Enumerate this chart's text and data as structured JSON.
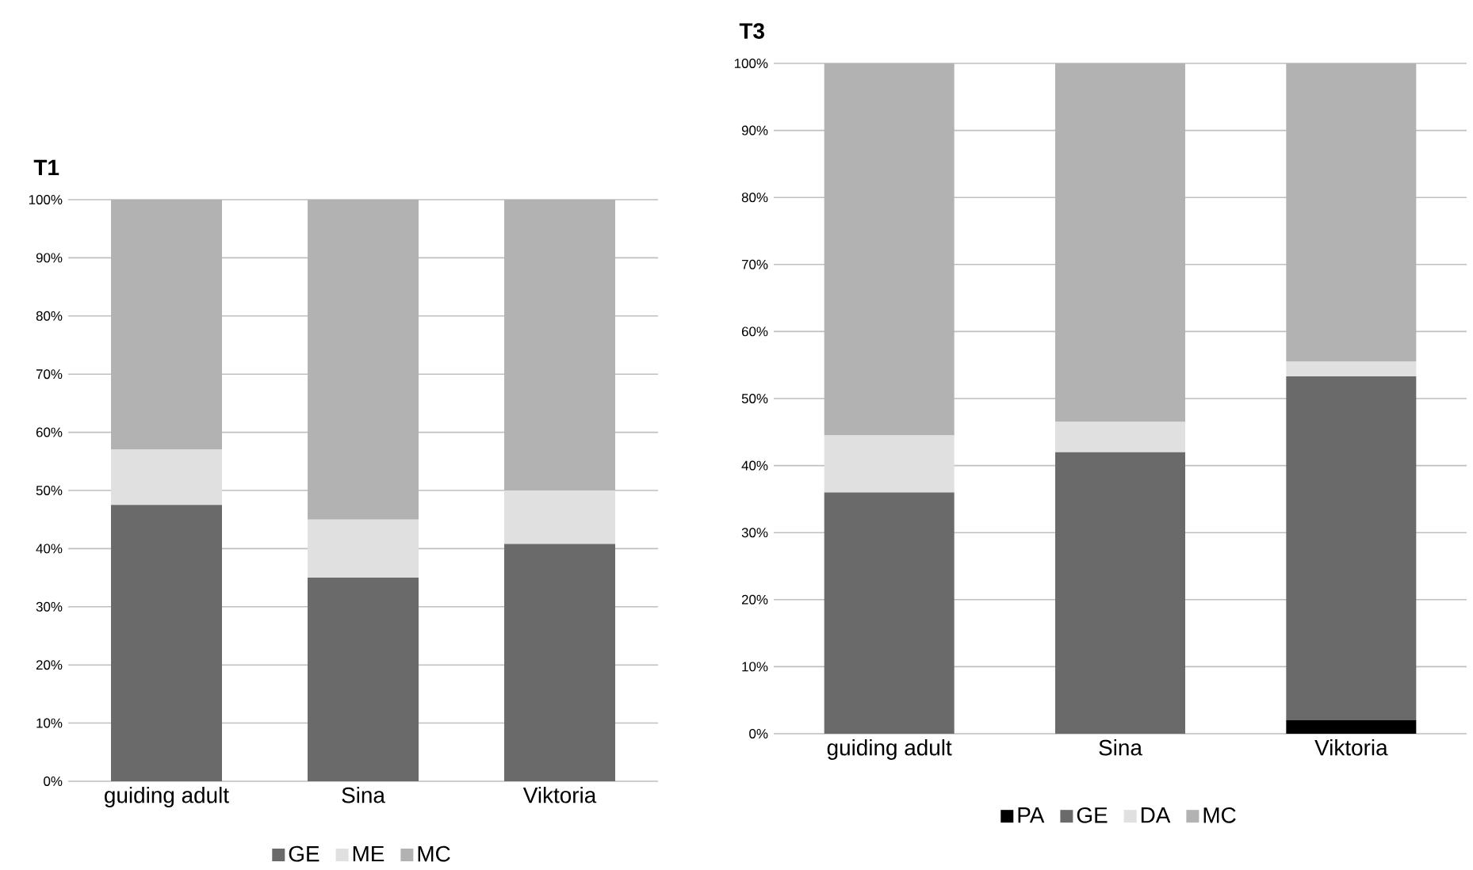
{
  "chart_data": [
    {
      "type": "bar",
      "stacked": true,
      "title": "T1",
      "categories": [
        "guiding adult",
        "Sina",
        "Viktoria"
      ],
      "series": [
        {
          "name": "GE",
          "color": "#6a6a6a",
          "values": [
            47.5,
            35,
            40.8
          ]
        },
        {
          "name": "ME",
          "color": "#e0e0e0",
          "values": [
            9.5,
            10,
            9.2
          ]
        },
        {
          "name": "MC",
          "color": "#b2b2b2",
          "values": [
            43,
            55,
            50
          ]
        }
      ],
      "ylim": [
        0,
        100
      ],
      "yticks": [
        {
          "value": 0,
          "label": "0%"
        },
        {
          "value": 10,
          "label": "10%"
        },
        {
          "value": 20,
          "label": "20%"
        },
        {
          "value": 30,
          "label": "30%"
        },
        {
          "value": 40,
          "label": "40%"
        },
        {
          "value": 50,
          "label": "50%"
        },
        {
          "value": 60,
          "label": "60%"
        },
        {
          "value": 70,
          "label": "70%"
        },
        {
          "value": 80,
          "label": "80%"
        },
        {
          "value": 90,
          "label": "90%"
        },
        {
          "value": 100,
          "label": "100%"
        }
      ],
      "grid": "y",
      "legend": "bottom"
    },
    {
      "type": "bar",
      "stacked": true,
      "title": "T3",
      "categories": [
        "guiding adult",
        "Sina",
        "Viktoria"
      ],
      "series": [
        {
          "name": "PA",
          "color": "#000000",
          "values": [
            0,
            0,
            2
          ]
        },
        {
          "name": "GE",
          "color": "#6a6a6a",
          "values": [
            36,
            42,
            51.3
          ]
        },
        {
          "name": "DA",
          "color": "#e0e0e0",
          "values": [
            8.5,
            4.5,
            2.2
          ]
        },
        {
          "name": "MC",
          "color": "#b2b2b2",
          "values": [
            55.5,
            53.5,
            44.5
          ]
        }
      ],
      "ylim": [
        0,
        100
      ],
      "yticks": [
        {
          "value": 0,
          "label": "0%"
        },
        {
          "value": 10,
          "label": "10%"
        },
        {
          "value": 20,
          "label": "20%"
        },
        {
          "value": 30,
          "label": "30%"
        },
        {
          "value": 40,
          "label": "40%"
        },
        {
          "value": 50,
          "label": "50%"
        },
        {
          "value": 60,
          "label": "60%"
        },
        {
          "value": 70,
          "label": "70%"
        },
        {
          "value": 80,
          "label": "80%"
        },
        {
          "value": 90,
          "label": "90%"
        },
        {
          "value": 100,
          "label": "100%"
        }
      ],
      "grid": "y",
      "legend": "bottom"
    }
  ]
}
